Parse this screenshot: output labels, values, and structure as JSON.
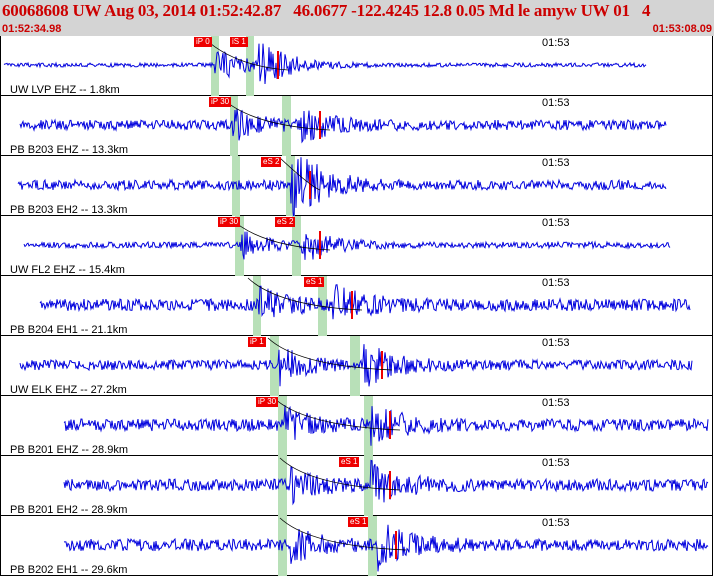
{
  "header": {
    "title": "60068608 UW Aug 03, 2014 01:52:42.87   46.0677 -122.4245 12.8 0.05 Md le amyw UW 01   4",
    "start_time": "01:52:34.98",
    "end_time": "01:53:08.09"
  },
  "colors": {
    "trace": "#0000dd",
    "pick": "#ee0000",
    "pick_window": "#b8e0b8",
    "header_bg": "#d4d4d4",
    "header_text": "#cc0000"
  },
  "channels": [
    {
      "label": "UW LVP EHZ -- 1.8km",
      "time_label": "01:53",
      "picks": [
        "iP 0",
        "iS 1"
      ]
    },
    {
      "label": "PB B203 EHZ -- 13.3km",
      "time_label": "01:53",
      "picks": [
        "iP 30"
      ]
    },
    {
      "label": "PB B203 EH2 -- 13.3km",
      "time_label": "01:53",
      "picks": [
        "eS 2"
      ]
    },
    {
      "label": "UW FL2 EHZ -- 15.4km",
      "time_label": "01:53",
      "picks": [
        "iP 30",
        "eS 2"
      ]
    },
    {
      "label": "PB B204 EH1 -- 21.1km",
      "time_label": "01:53",
      "picks": [
        "eS 1"
      ]
    },
    {
      "label": "UW ELK EHZ -- 27.2km",
      "time_label": "01:53",
      "picks": [
        "iP 1"
      ]
    },
    {
      "label": "PB B201 EHZ -- 28.9km",
      "time_label": "01:53",
      "picks": [
        "iP 30"
      ]
    },
    {
      "label": "PB B201 EH2 -- 28.9km",
      "time_label": "01:53",
      "picks": [
        "eS 1"
      ]
    },
    {
      "label": "PB B202 EH1 -- 29.6km",
      "time_label": "01:53",
      "picks": [
        "eS 1"
      ]
    }
  ]
}
